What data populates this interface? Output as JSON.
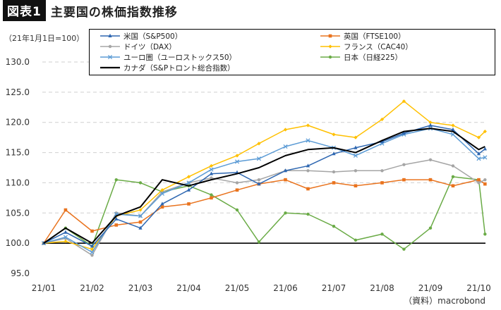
{
  "header": {
    "tag": "図表1",
    "title": "主要国の株価指数推移"
  },
  "base_note": "（21年1月1日=100）",
  "source": "（資料）macrobond",
  "colors": {
    "us": "#2e67b1",
    "uk": "#e9731e",
    "de": "#a5a5a5",
    "fr": "#ffc000",
    "eu": "#5b9bd5",
    "jp": "#6aab46",
    "ca": "#000000"
  },
  "chart_data": {
    "type": "line",
    "title": "主要国の株価指数推移",
    "xlabel": "",
    "ylabel": "",
    "ylim": [
      95,
      130
    ],
    "yticks": [
      "95.0",
      "100.0",
      "105.0",
      "110.0",
      "115.0",
      "120.0",
      "125.0",
      "130.0"
    ],
    "grid": "horizontal dashed",
    "legend_position": "top",
    "baseline": 100,
    "x_ticks": [
      "21/01",
      "21/02",
      "21/03",
      "21/04",
      "21/05",
      "21/06",
      "21/07",
      "21/08",
      "21/09",
      "21/10"
    ],
    "x": [
      "21/01/01",
      "21/01/15",
      "21/02/01",
      "21/02/15",
      "21/03/01",
      "21/03/15",
      "21/04/01",
      "21/04/15",
      "21/05/01",
      "21/05/15",
      "21/06/01",
      "21/06/15",
      "21/07/01",
      "21/07/15",
      "21/08/01",
      "21/08/15",
      "21/09/01",
      "21/09/15",
      "21/10/01",
      "21/10/05"
    ],
    "series": [
      {
        "name": "米国（S&P500）",
        "key": "us",
        "marker": "triangle",
        "values": [
          100,
          101.8,
          99.5,
          104.0,
          102.5,
          106.5,
          108.8,
          111.5,
          111.7,
          109.8,
          112.0,
          112.8,
          114.8,
          115.8,
          116.8,
          118.2,
          119.5,
          118.8,
          114.8,
          115.6
        ]
      },
      {
        "name": "英国（FTSE100）",
        "key": "uk",
        "marker": "square",
        "values": [
          100,
          105.5,
          102.0,
          103.0,
          103.5,
          106.0,
          106.5,
          107.5,
          108.8,
          109.8,
          110.5,
          109.0,
          110.0,
          109.5,
          110.0,
          110.5,
          110.5,
          109.5,
          110.5,
          109.8
        ]
      },
      {
        "name": "ドイツ（DAX）",
        "key": "de",
        "marker": "circle",
        "values": [
          100,
          100.8,
          98.0,
          105.0,
          104.5,
          108.5,
          110.0,
          110.8,
          110.0,
          110.5,
          112.0,
          112.0,
          111.8,
          112.0,
          112.0,
          113.0,
          113.8,
          112.8,
          110.0,
          110.5
        ]
      },
      {
        "name": "フランス（CAC40）",
        "key": "fr",
        "marker": "diamond",
        "values": [
          100,
          100.3,
          99.0,
          104.5,
          105.5,
          108.8,
          111.0,
          112.8,
          114.5,
          116.5,
          118.8,
          119.5,
          118.0,
          117.5,
          120.5,
          123.5,
          120.0,
          119.5,
          117.5,
          118.5
        ]
      },
      {
        "name": "ユーロ圏（ユーロストックス50）",
        "key": "eu",
        "marker": "x",
        "values": [
          100,
          101.0,
          98.5,
          104.8,
          104.5,
          108.2,
          110.0,
          112.2,
          113.5,
          114.0,
          116.0,
          117.0,
          115.8,
          114.5,
          116.5,
          118.0,
          119.0,
          118.0,
          114.0,
          114.2
        ]
      },
      {
        "name": "日本（日経225）",
        "key": "jp",
        "marker": "circle",
        "values": [
          100,
          102.5,
          99.5,
          110.5,
          110.0,
          108.5,
          109.5,
          108.0,
          105.5,
          100.2,
          105.0,
          104.8,
          102.8,
          100.5,
          101.5,
          99.0,
          102.5,
          111.0,
          110.5,
          101.5
        ]
      },
      {
        "name": "カナダ（S&Pトロント総合指数）",
        "key": "ca",
        "marker": "none",
        "values": [
          100,
          102.5,
          100.0,
          104.5,
          106.0,
          110.5,
          109.5,
          110.5,
          111.5,
          112.5,
          114.5,
          115.5,
          115.8,
          115.0,
          117.0,
          118.5,
          119.0,
          118.5,
          115.5,
          116.0
        ]
      }
    ]
  }
}
